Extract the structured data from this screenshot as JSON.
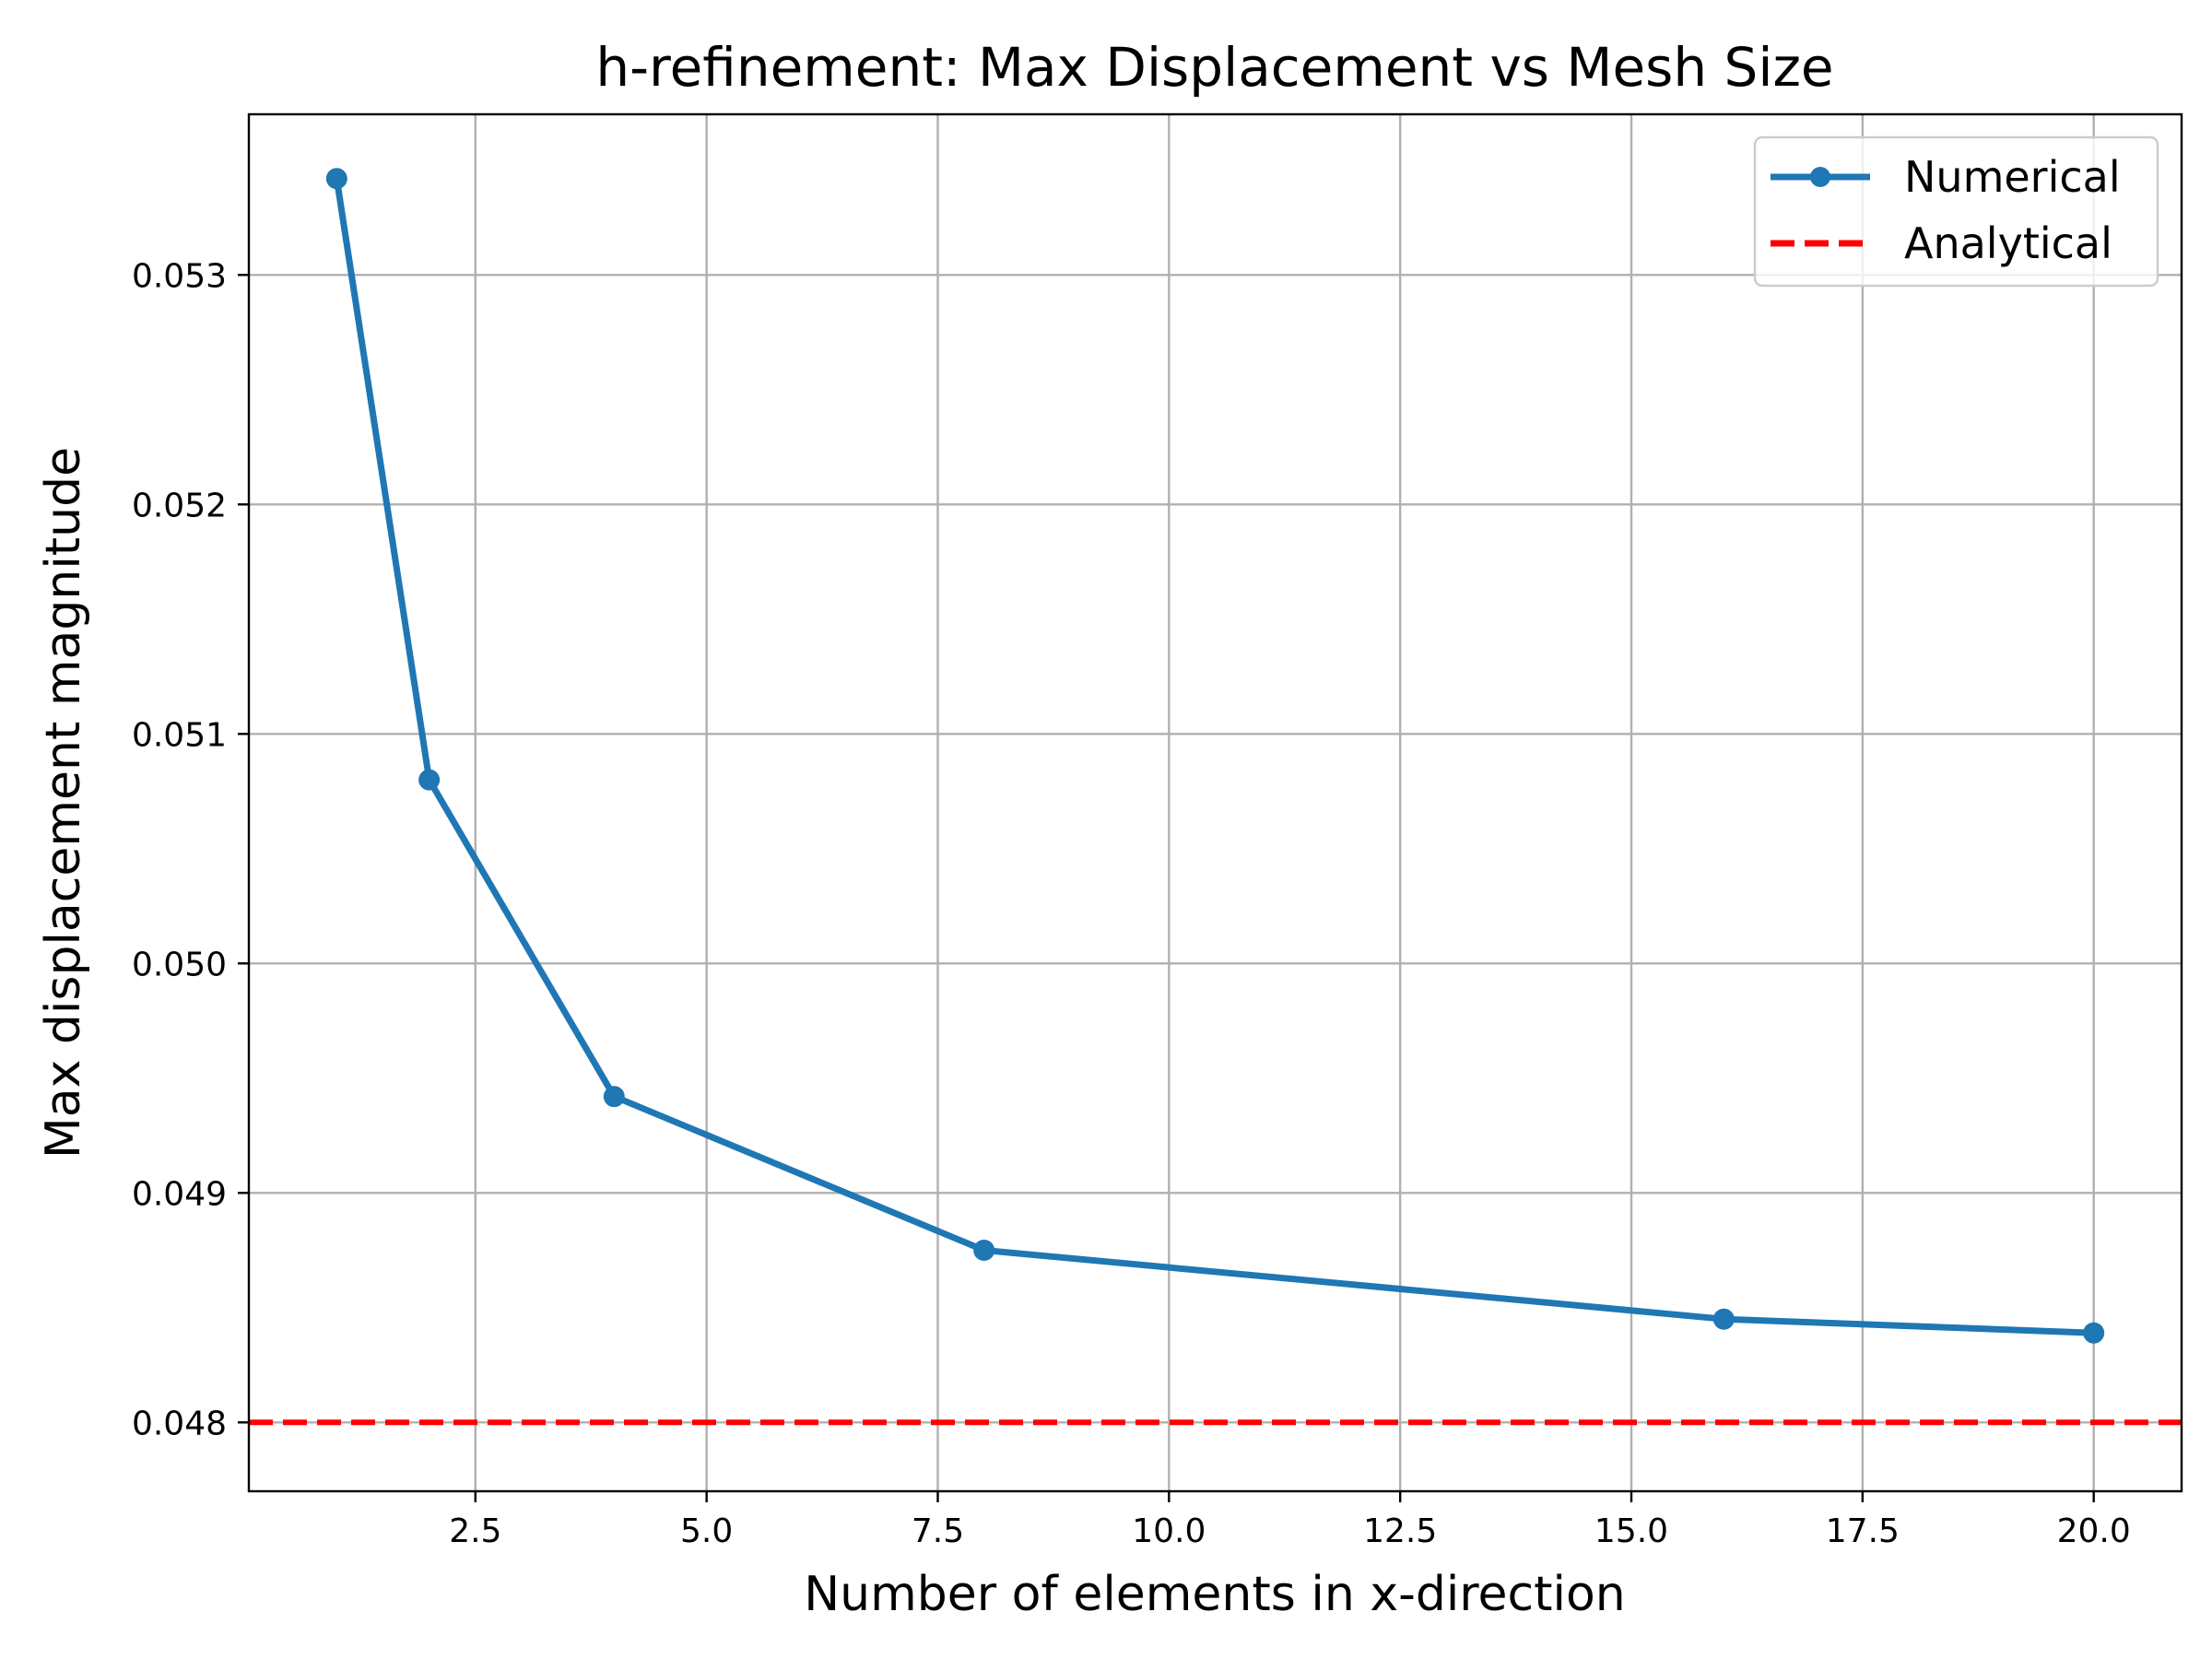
{
  "chart_data": {
    "type": "line",
    "title": "h-refinement: Max Displacement vs Mesh Size",
    "xlabel": "Number of elements in x-direction",
    "ylabel": "Max displacement magnitude",
    "xlim": [
      0.05,
      20.95
    ],
    "ylim": [
      0.0477,
      0.0537
    ],
    "xticks": [
      2.5,
      5.0,
      7.5,
      10.0,
      12.5,
      15.0,
      17.5,
      20.0
    ],
    "xtick_labels": [
      "2.5",
      "5.0",
      "7.5",
      "10.0",
      "12.5",
      "15.0",
      "17.5",
      "20.0"
    ],
    "yticks": [
      0.048,
      0.049,
      0.05,
      0.051,
      0.052,
      0.053
    ],
    "ytick_labels": [
      "0.048",
      "0.049",
      "0.050",
      "0.051",
      "0.052",
      "0.053"
    ],
    "grid": true,
    "legend_position": "top-right",
    "series": [
      {
        "name": "Numerical",
        "style": "solid line with circle markers",
        "color": "#1f77b4",
        "x": [
          1,
          2,
          4,
          8,
          16,
          20
        ],
        "y": [
          0.05342,
          0.0508,
          0.04942,
          0.04875,
          0.04845,
          0.04839
        ]
      },
      {
        "name": "Analytical",
        "style": "dashed horizontal line",
        "color": "#ff0000",
        "y_constant": 0.048
      }
    ]
  }
}
